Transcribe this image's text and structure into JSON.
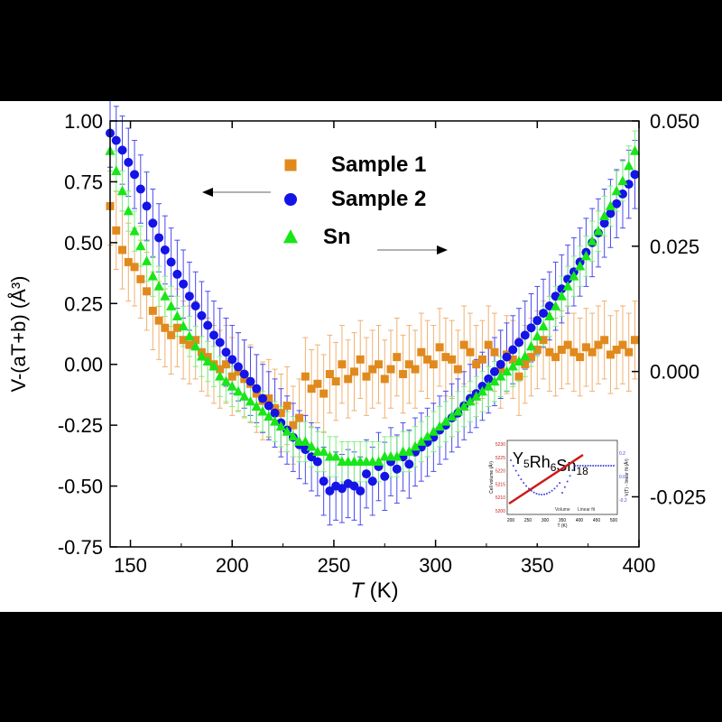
{
  "chart_data": {
    "type": "scatter",
    "xlabel": "T",
    "xunit": "(K)",
    "ylabel_left": "V-(aT+b) (Å³)",
    "xlim": [
      140,
      400
    ],
    "ylim_left": [
      -0.75,
      1.0
    ],
    "ylim_right": [
      -0.035,
      0.05
    ],
    "x_ticks": [
      "150",
      "200",
      "250",
      "300",
      "350",
      "400"
    ],
    "y_ticks_left": [
      "1.00",
      "0.75",
      "0.50",
      "0.25",
      "0.00",
      "-0.25",
      "-0.50",
      "-0.75"
    ],
    "y_ticks_right": [
      "0.050",
      "0.025",
      "0.000",
      "-0.025"
    ],
    "grid": false,
    "legend_position": "top-center",
    "series": [
      {
        "name": "Sample 1",
        "marker": "square",
        "color": "#e08a1e",
        "axis": "left",
        "x": [
          140,
          143,
          146,
          149,
          152,
          155,
          158,
          161,
          164,
          167,
          170,
          173,
          176,
          179,
          182,
          185,
          188,
          191,
          194,
          197,
          200,
          203,
          206,
          209,
          212,
          215,
          218,
          221,
          224,
          227,
          230,
          233,
          236,
          239,
          242,
          245,
          248,
          251,
          254,
          257,
          260,
          263,
          266,
          269,
          272,
          275,
          278,
          281,
          284,
          287,
          290,
          293,
          296,
          299,
          302,
          305,
          308,
          311,
          314,
          317,
          320,
          323,
          326,
          329,
          332,
          335,
          338,
          341,
          344,
          347,
          350,
          353,
          356,
          359,
          362,
          365,
          368,
          371,
          374,
          377,
          380,
          383,
          386,
          389,
          392,
          395,
          398
        ],
        "y": [
          0.65,
          0.55,
          0.47,
          0.42,
          0.4,
          0.35,
          0.3,
          0.22,
          0.18,
          0.15,
          0.12,
          0.15,
          0.1,
          0.08,
          0.1,
          0.05,
          0.03,
          0.0,
          -0.02,
          0.0,
          -0.05,
          -0.03,
          -0.06,
          -0.08,
          -0.12,
          -0.15,
          -0.14,
          -0.18,
          -0.2,
          -0.17,
          -0.25,
          -0.22,
          -0.05,
          -0.1,
          -0.08,
          -0.12,
          -0.04,
          -0.07,
          0.0,
          -0.06,
          -0.03,
          0.02,
          -0.05,
          -0.02,
          0.0,
          -0.06,
          -0.02,
          0.03,
          -0.04,
          0.0,
          -0.02,
          0.05,
          0.02,
          0.0,
          0.07,
          0.03,
          0.02,
          -0.02,
          0.08,
          0.05,
          0.0,
          0.02,
          0.08,
          0.05,
          -0.02,
          0.04,
          0.02,
          -0.05,
          0.0,
          0.03,
          0.06,
          0.1,
          0.05,
          0.03,
          0.06,
          0.08,
          0.05,
          0.03,
          0.07,
          0.05,
          0.08,
          0.1,
          0.04,
          0.06,
          0.08,
          0.05,
          0.1
        ],
        "error": 0.16
      },
      {
        "name": "Sample 2",
        "marker": "circle",
        "color": "#1414e6",
        "axis": "left",
        "x": [
          140,
          143,
          146,
          149,
          152,
          155,
          158,
          161,
          164,
          167,
          170,
          173,
          176,
          179,
          182,
          185,
          188,
          191,
          194,
          197,
          200,
          203,
          206,
          209,
          212,
          215,
          218,
          221,
          224,
          227,
          230,
          233,
          236,
          239,
          242,
          245,
          248,
          251,
          254,
          257,
          260,
          263,
          266,
          269,
          272,
          275,
          278,
          281,
          284,
          287,
          290,
          293,
          296,
          299,
          302,
          305,
          308,
          311,
          314,
          317,
          320,
          323,
          326,
          329,
          332,
          335,
          338,
          341,
          344,
          347,
          350,
          353,
          356,
          359,
          362,
          365,
          368,
          371,
          374,
          377,
          380,
          383,
          386,
          389,
          392,
          395,
          398
        ],
        "y": [
          0.95,
          0.92,
          0.88,
          0.83,
          0.78,
          0.72,
          0.65,
          0.58,
          0.52,
          0.47,
          0.42,
          0.37,
          0.33,
          0.28,
          0.24,
          0.2,
          0.16,
          0.12,
          0.09,
          0.05,
          0.02,
          -0.01,
          -0.04,
          -0.07,
          -0.1,
          -0.14,
          -0.17,
          -0.2,
          -0.24,
          -0.27,
          -0.3,
          -0.33,
          -0.35,
          -0.38,
          -0.4,
          -0.48,
          -0.52,
          -0.5,
          -0.51,
          -0.49,
          -0.5,
          -0.52,
          -0.45,
          -0.48,
          -0.42,
          -0.46,
          -0.4,
          -0.43,
          -0.38,
          -0.41,
          -0.36,
          -0.34,
          -0.32,
          -0.3,
          -0.27,
          -0.25,
          -0.22,
          -0.2,
          -0.17,
          -0.14,
          -0.12,
          -0.09,
          -0.06,
          -0.03,
          0.0,
          0.03,
          0.06,
          0.09,
          0.12,
          0.15,
          0.18,
          0.21,
          0.24,
          0.28,
          0.31,
          0.35,
          0.38,
          0.42,
          0.46,
          0.5,
          0.54,
          0.58,
          0.62,
          0.66,
          0.7,
          0.74,
          0.78
        ],
        "error": 0.14
      },
      {
        "name": "Sn",
        "marker": "triangle",
        "color": "#18e618",
        "axis": "right",
        "x": [
          140,
          143,
          146,
          149,
          152,
          155,
          158,
          161,
          164,
          167,
          170,
          173,
          176,
          179,
          182,
          185,
          188,
          191,
          194,
          197,
          200,
          203,
          206,
          209,
          212,
          215,
          218,
          221,
          224,
          227,
          230,
          233,
          236,
          239,
          242,
          245,
          248,
          251,
          254,
          257,
          260,
          263,
          266,
          269,
          272,
          275,
          278,
          281,
          284,
          287,
          290,
          293,
          296,
          299,
          302,
          305,
          308,
          311,
          314,
          317,
          320,
          323,
          326,
          329,
          332,
          335,
          338,
          341,
          344,
          347,
          350,
          353,
          356,
          359,
          362,
          365,
          368,
          371,
          374,
          377,
          380,
          383,
          386,
          389,
          392,
          395,
          398
        ],
        "y": [
          0.044,
          0.04,
          0.036,
          0.032,
          0.028,
          0.025,
          0.022,
          0.019,
          0.017,
          0.015,
          0.013,
          0.011,
          0.009,
          0.007,
          0.005,
          0.003,
          0.002,
          0.001,
          -0.001,
          -0.002,
          -0.003,
          -0.004,
          -0.005,
          -0.006,
          -0.007,
          -0.008,
          -0.009,
          -0.01,
          -0.011,
          -0.012,
          -0.013,
          -0.014,
          -0.014,
          -0.015,
          -0.016,
          -0.016,
          -0.017,
          -0.017,
          -0.018,
          -0.018,
          -0.018,
          -0.018,
          -0.018,
          -0.018,
          -0.018,
          -0.017,
          -0.017,
          -0.017,
          -0.016,
          -0.016,
          -0.015,
          -0.014,
          -0.013,
          -0.012,
          -0.011,
          -0.01,
          -0.009,
          -0.008,
          -0.007,
          -0.006,
          -0.005,
          -0.004,
          -0.003,
          -0.002,
          -0.001,
          0.0,
          0.001,
          0.002,
          0.003,
          0.005,
          0.007,
          0.009,
          0.011,
          0.013,
          0.015,
          0.017,
          0.019,
          0.021,
          0.023,
          0.026,
          0.028,
          0.031,
          0.033,
          0.036,
          0.038,
          0.041,
          0.044
        ],
        "error": 0.004
      }
    ],
    "inset": {
      "title_base": "Y",
      "title_parts": [
        [
          "Y",
          "5"
        ],
        [
          "Rh",
          "6"
        ],
        [
          "Sn",
          "18"
        ]
      ],
      "ylabel_left": "Cell volume (Å³)",
      "ylabel_right": "V(T) - linear fit (Å³)",
      "xlabel": "T (K)",
      "x_ticks": [
        "200",
        "250",
        "300",
        "350",
        "400",
        "450",
        "500"
      ],
      "y_ticks_left": [
        "5200",
        "5210",
        "5215",
        "5220",
        "5225",
        "5230"
      ],
      "y_ticks_right": [
        "0.2",
        "0.0",
        "-0.2"
      ],
      "legend_entries": [
        "Volume",
        "Linear fit"
      ],
      "line_color": "#cc1a1a",
      "point_color": "#4444dd"
    }
  }
}
